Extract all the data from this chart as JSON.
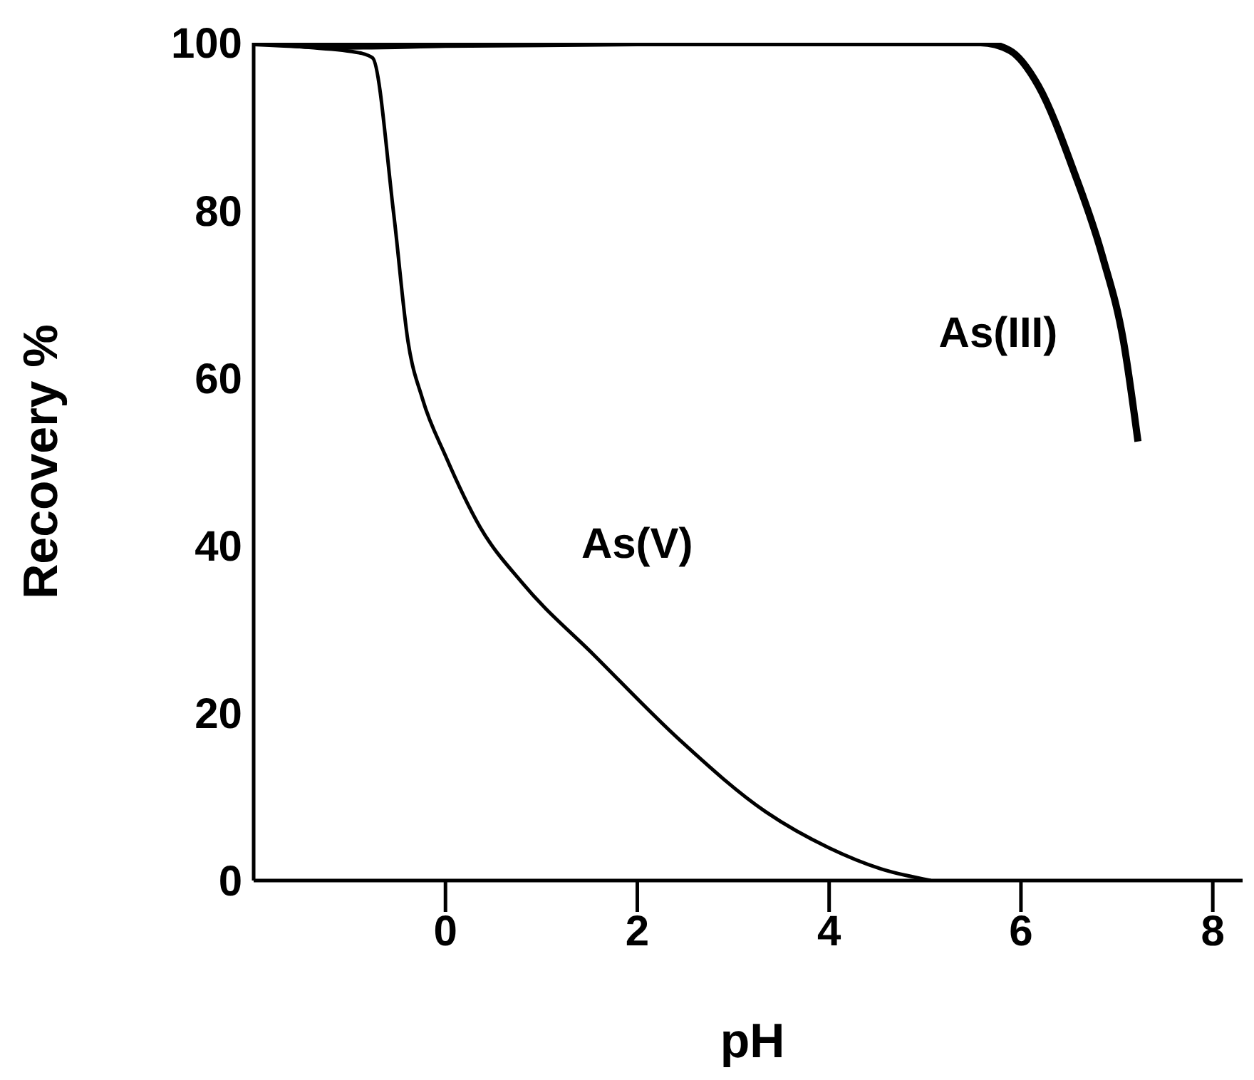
{
  "chart_data": {
    "type": "line",
    "xlabel": "pH",
    "ylabel": "Recovery %",
    "xlim": [
      -2,
      8.4
    ],
    "ylim": [
      0,
      100
    ],
    "xticks": [
      0,
      2,
      4,
      6,
      8
    ],
    "yticks": [
      0,
      20,
      40,
      60,
      80,
      100
    ],
    "grid": false,
    "legend": false,
    "marker": "none",
    "line_style": "solid",
    "series": [
      {
        "name": "As(V)",
        "color": "#000000",
        "x": [
          -2,
          -1.5,
          -0.9,
          -0.76,
          -0.54,
          -0.39,
          -0.24,
          0,
          0.36,
          0.81,
          1.55,
          2.45,
          3.34,
          4,
          4.54,
          5.06
        ],
        "values": [
          100,
          99.5,
          98.8,
          98.2,
          79.6,
          64.3,
          57.5,
          50.7,
          42.2,
          35.4,
          26.9,
          16.7,
          8.2,
          3.9,
          1.4,
          0
        ]
      },
      {
        "name": "As(III)",
        "color": "#000000",
        "x": [
          -2,
          -1,
          0,
          2,
          4,
          5,
          5.58,
          5.88,
          6.18,
          6.55,
          6.85,
          7.07,
          7.22
        ],
        "values": [
          100,
          99.6,
          99.8,
          100,
          100,
          100,
          100,
          99.1,
          94.9,
          84.7,
          74.5,
          64.3,
          52.4
        ]
      }
    ]
  }
}
